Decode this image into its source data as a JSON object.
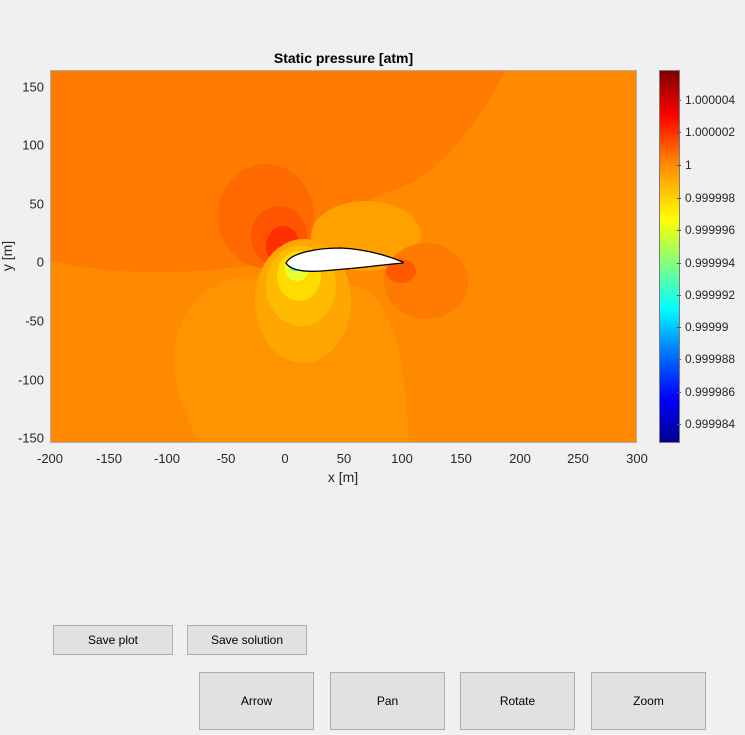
{
  "chart_data": {
    "type": "heatmap",
    "title": "Static pressure [atm]",
    "xlabel": "x [m]",
    "ylabel": "y [m]",
    "xlim": [
      -200,
      300
    ],
    "ylim": [
      -155,
      163
    ],
    "xticks": [
      "-200",
      "-150",
      "-100",
      "-50",
      "0",
      "50",
      "100",
      "150",
      "200",
      "250",
      "300"
    ],
    "yticks": [
      "150",
      "100",
      "50",
      "0",
      "-50",
      "-100",
      "-150"
    ],
    "colorbar": {
      "colormap": "jet",
      "range": [
        0.999983,
        1.0000055
      ],
      "ticks": [
        "1.000004",
        "1.000002",
        "1",
        "0.999998",
        "0.999996",
        "0.999994",
        "0.999992",
        "0.99999",
        "0.999988",
        "0.999986",
        "0.999984"
      ]
    },
    "airfoil": {
      "leading_edge_x": 0,
      "trailing_edge_x": 100,
      "y": 0
    }
  },
  "buttons": {
    "save_plot": "Save plot",
    "save_solution": "Save solution",
    "arrow": "Arrow",
    "pan": "Pan",
    "rotate": "Rotate",
    "zoom": "Zoom"
  }
}
